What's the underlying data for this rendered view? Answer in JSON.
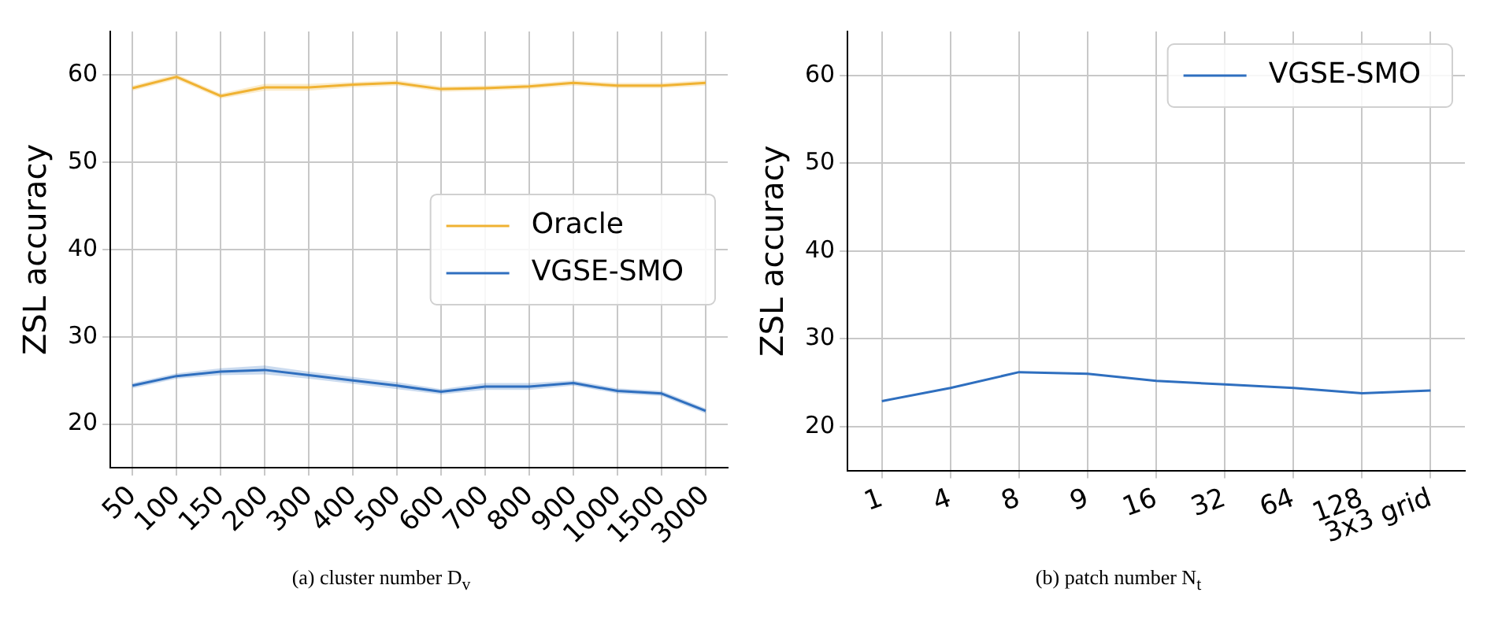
{
  "chart_data": [
    {
      "type": "line",
      "ylabel": "ZSL accuracy",
      "categories": [
        "50",
        "100",
        "150",
        "200",
        "300",
        "400",
        "500",
        "600",
        "700",
        "800",
        "900",
        "1000",
        "1500",
        "3000"
      ],
      "ylim": [
        15,
        65
      ],
      "yticks": [
        20,
        30,
        40,
        50,
        60
      ],
      "grid": true,
      "legend": "center right",
      "annotations": [
        "(a) cluster number D$_{v}$"
      ],
      "series": [
        {
          "name": "Oracle",
          "color": "#f0b232",
          "values": [
            58.5,
            59.8,
            57.6,
            58.6,
            58.6,
            58.9,
            59.1,
            58.4,
            58.5,
            58.7,
            59.1,
            58.8,
            58.8,
            59.1
          ],
          "lower": [
            58.2,
            59.5,
            57.3,
            58.2,
            58.2,
            58.6,
            58.8,
            58.1,
            58.2,
            58.4,
            58.8,
            58.5,
            58.5,
            58.8
          ],
          "upper": [
            58.8,
            60.1,
            57.9,
            59.0,
            59.0,
            59.2,
            59.4,
            58.7,
            58.8,
            59.0,
            59.4,
            59.1,
            59.1,
            59.4
          ]
        },
        {
          "name": "VGSE-SMO",
          "color": "#2f6fbf",
          "values": [
            24.4,
            25.5,
            26.0,
            26.2,
            25.6,
            25.0,
            24.4,
            23.7,
            24.3,
            24.3,
            24.7,
            23.8,
            23.5,
            21.5
          ],
          "lower": [
            24.1,
            25.2,
            25.6,
            25.7,
            25.2,
            24.6,
            24.0,
            23.4,
            23.9,
            23.9,
            24.4,
            23.5,
            23.2,
            21.2
          ],
          "upper": [
            24.7,
            25.8,
            26.4,
            26.7,
            26.0,
            25.4,
            24.8,
            24.0,
            24.7,
            24.7,
            25.0,
            24.1,
            23.8,
            21.8
          ]
        }
      ]
    },
    {
      "type": "line",
      "ylabel": "ZSL accuracy",
      "categories": [
        "1",
        "4",
        "8",
        "9",
        "16",
        "32",
        "64",
        "128",
        "3x3 grid"
      ],
      "ylim": [
        15,
        65
      ],
      "yticks": [
        20,
        30,
        40,
        50,
        60
      ],
      "grid": true,
      "legend": "top right",
      "annotations": [
        "(b) patch number N$_{t}$"
      ],
      "series": [
        {
          "name": "VGSE-SMO",
          "color": "#2f6fbf",
          "values": [
            22.9,
            24.4,
            26.2,
            26.0,
            25.2,
            24.8,
            24.4,
            23.8,
            24.1
          ]
        }
      ]
    }
  ]
}
